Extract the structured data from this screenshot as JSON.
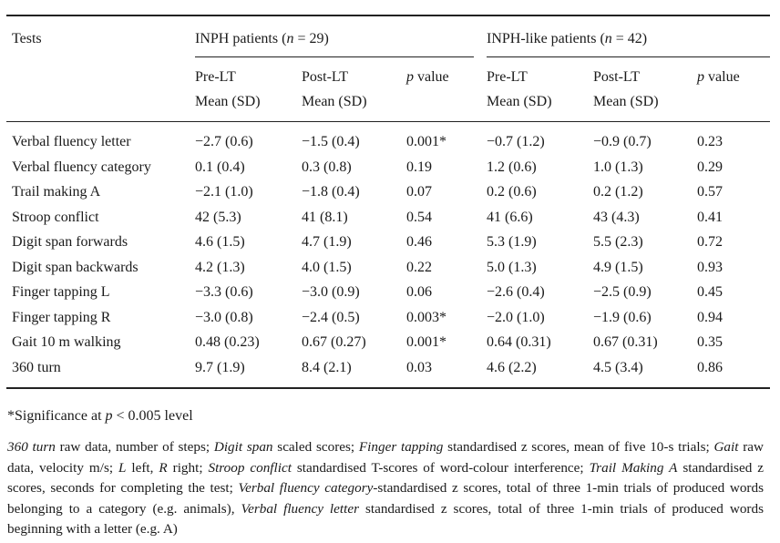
{
  "table": {
    "col_tests": "Tests",
    "group1": {
      "label_prefix": "INPH patients (",
      "n_var": "n",
      "label_suffix": " = 29)"
    },
    "group2": {
      "label_prefix": "INPH-like patients (",
      "n_var": "n",
      "label_suffix": " = 42)"
    },
    "sub": {
      "pre_lt": "Pre-LT",
      "post_lt": "Post-LT",
      "mean_sd": "Mean (SD)",
      "p_var": "p",
      "p_value": " value"
    },
    "rows": [
      {
        "test": "Verbal fluency letter",
        "inph_pre": "−2.7 (0.6)",
        "inph_post": "−1.5 (0.4)",
        "inph_p": "0.001*",
        "like_pre": "−0.7 (1.2)",
        "like_post": "−0.9 (0.7)",
        "like_p": "0.23"
      },
      {
        "test": "Verbal fluency category",
        "inph_pre": "0.1 (0.4)",
        "inph_post": "0.3 (0.8)",
        "inph_p": "0.19",
        "like_pre": "1.2 (0.6)",
        "like_post": "1.0 (1.3)",
        "like_p": "0.29"
      },
      {
        "test": "Trail making A",
        "inph_pre": "−2.1 (1.0)",
        "inph_post": "−1.8 (0.4)",
        "inph_p": "0.07",
        "like_pre": "0.2 (0.6)",
        "like_post": "0.2 (1.2)",
        "like_p": "0.57"
      },
      {
        "test": "Stroop conflict",
        "inph_pre": "42 (5.3)",
        "inph_post": "41 (8.1)",
        "inph_p": "0.54",
        "like_pre": "41 (6.6)",
        "like_post": "43 (4.3)",
        "like_p": "0.41"
      },
      {
        "test": "Digit span forwards",
        "inph_pre": "4.6 (1.5)",
        "inph_post": "4.7 (1.9)",
        "inph_p": "0.46",
        "like_pre": "5.3 (1.9)",
        "like_post": "5.5 (2.3)",
        "like_p": "0.72"
      },
      {
        "test": "Digit span backwards",
        "inph_pre": "4.2 (1.3)",
        "inph_post": "4.0 (1.5)",
        "inph_p": "0.22",
        "like_pre": "5.0 (1.3)",
        "like_post": "4.9 (1.5)",
        "like_p": "0.93"
      },
      {
        "test": "Finger tapping L",
        "inph_pre": "−3.3 (0.6)",
        "inph_post": "−3.0 (0.9)",
        "inph_p": "0.06",
        "like_pre": "−2.6 (0.4)",
        "like_post": "−2.5 (0.9)",
        "like_p": "0.45"
      },
      {
        "test": "Finger tapping R",
        "inph_pre": "−3.0 (0.8)",
        "inph_post": "−2.4 (0.5)",
        "inph_p": "0.003*",
        "like_pre": "−2.0 (1.0)",
        "like_post": "−1.9 (0.6)",
        "like_p": "0.94"
      },
      {
        "test": "Gait 10 m walking",
        "inph_pre": "0.48 (0.23)",
        "inph_post": "0.67 (0.27)",
        "inph_p": "0.001*",
        "like_pre": "0.64 (0.31)",
        "like_post": "0.67 (0.31)",
        "like_p": "0.35"
      },
      {
        "test": "360 turn",
        "inph_pre": "9.7 (1.9)",
        "inph_post": "8.4 (2.1)",
        "inph_p": "0.03",
        "like_pre": "4.6 (2.2)",
        "like_post": "4.5 (3.4)",
        "like_p": "0.86"
      }
    ]
  },
  "footnotes": {
    "significance": [
      {
        "t": "*Significance at "
      },
      {
        "t": "p",
        "i": true
      },
      {
        "t": " < 0.005 level"
      }
    ],
    "definitions": [
      {
        "t": "360 turn",
        "i": true
      },
      {
        "t": " raw data, number of steps; "
      },
      {
        "t": "Digit span",
        "i": true
      },
      {
        "t": " scaled scores; "
      },
      {
        "t": "Finger tapping",
        "i": true
      },
      {
        "t": " standardised z scores, mean of five 10-s trials; "
      },
      {
        "t": "Gait",
        "i": true
      },
      {
        "t": " raw data, velocity m/s; "
      },
      {
        "t": "L",
        "i": true
      },
      {
        "t": " left, "
      },
      {
        "t": "R",
        "i": true
      },
      {
        "t": " right; "
      },
      {
        "t": "Stroop conflict",
        "i": true
      },
      {
        "t": " standardised T-scores of word-colour interference; "
      },
      {
        "t": "Trail Making A",
        "i": true
      },
      {
        "t": " standardised z scores, seconds for completing the test; "
      },
      {
        "t": "Verbal fluency category",
        "i": true
      },
      {
        "t": "-standardised z scores, total of three 1-min trials of produced words belonging to a category (e.g. animals), "
      },
      {
        "t": "Verbal fluency letter",
        "i": true
      },
      {
        "t": " standardised z scores, total of three 1-min trials of produced words beginning with a letter (e.g. A)"
      }
    ]
  }
}
